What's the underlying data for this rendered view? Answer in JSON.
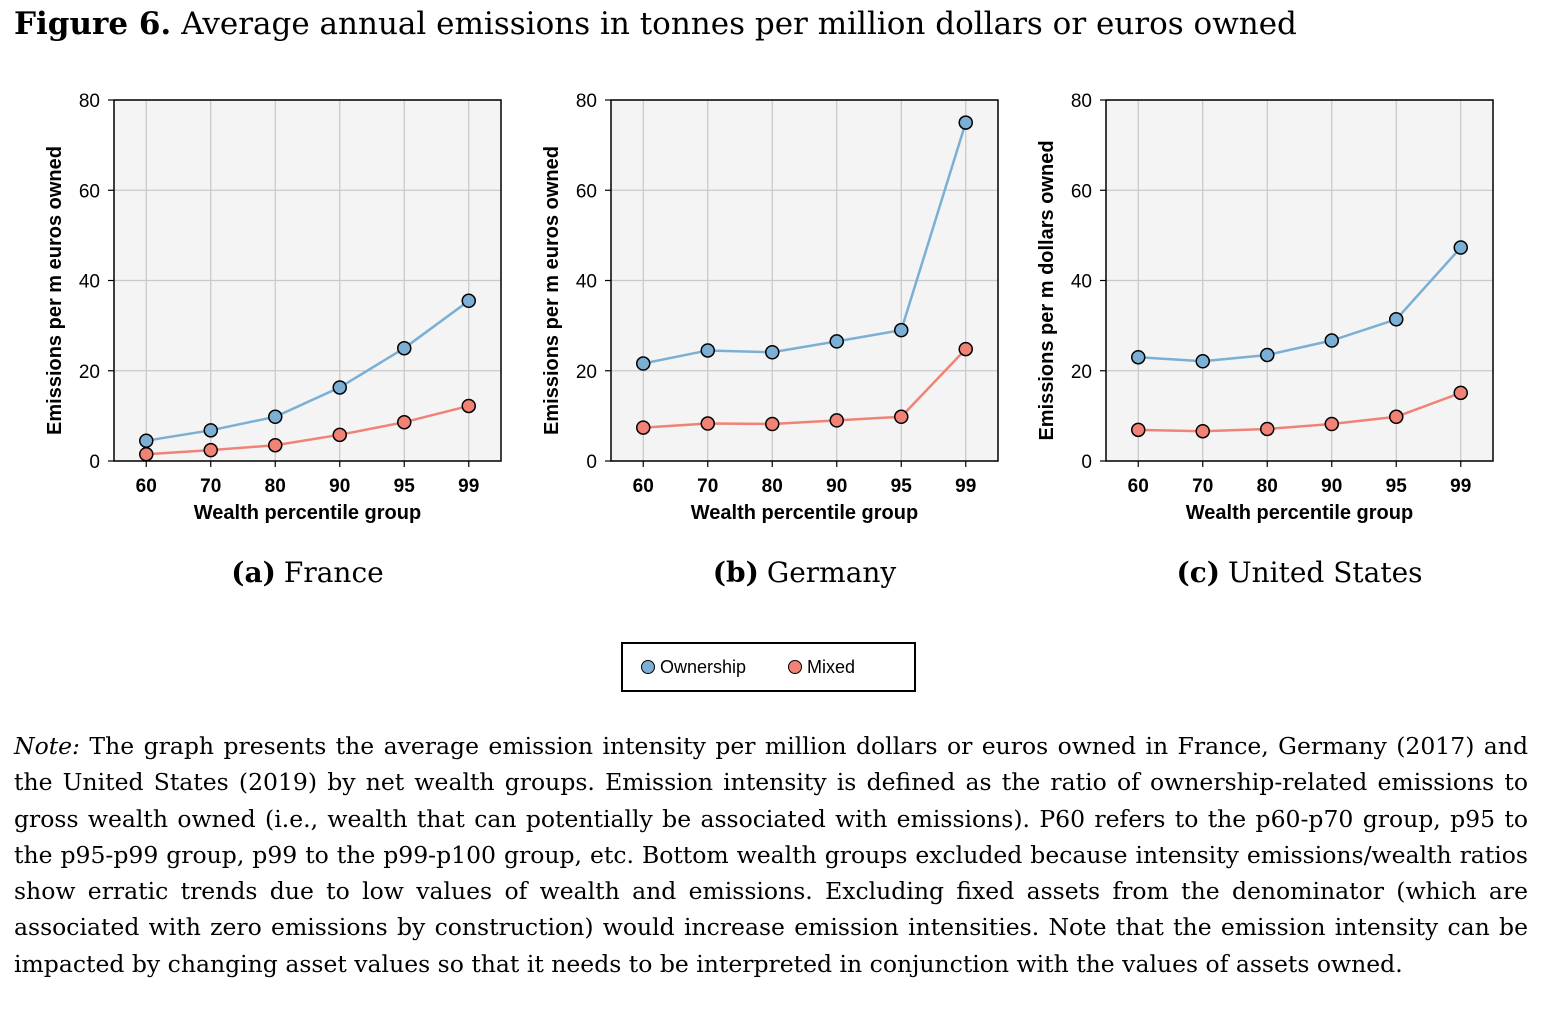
{
  "figure": {
    "label": "Figure 6.",
    "title": "Average annual emissions in tonnes per million dollars or euros owned"
  },
  "legend": {
    "items": [
      {
        "label": "Ownership",
        "color": "#7bafd4"
      },
      {
        "label": "Mixed",
        "color": "#f08376"
      }
    ]
  },
  "chart_data": [
    {
      "type": "line",
      "panel_label": "(a)",
      "caption": "France",
      "xlabel": "Wealth percentile group",
      "ylabel": "Emissions per m euros owned",
      "categories": [
        "60",
        "70",
        "80",
        "90",
        "95",
        "99"
      ],
      "ylim": [
        0,
        80
      ],
      "yticks": [
        "0",
        "20",
        "40",
        "60",
        "80"
      ],
      "grid": true,
      "series": [
        {
          "name": "Ownership",
          "color": "#7bafd4",
          "values": [
            4.5,
            6.8,
            9.8,
            16.3,
            25.0,
            35.5
          ]
        },
        {
          "name": "Mixed",
          "color": "#f08376",
          "values": [
            1.5,
            2.4,
            3.5,
            5.8,
            8.6,
            12.2
          ]
        }
      ]
    },
    {
      "type": "line",
      "panel_label": "(b)",
      "caption": "Germany",
      "xlabel": "Wealth percentile group",
      "ylabel": "Emissions per m euros owned",
      "categories": [
        "60",
        "70",
        "80",
        "90",
        "95",
        "99"
      ],
      "ylim": [
        0,
        80
      ],
      "yticks": [
        "0",
        "20",
        "40",
        "60",
        "80"
      ],
      "grid": true,
      "series": [
        {
          "name": "Ownership",
          "color": "#7bafd4",
          "values": [
            21.6,
            24.5,
            24.1,
            26.5,
            29.0,
            75.0
          ]
        },
        {
          "name": "Mixed",
          "color": "#f08376",
          "values": [
            7.4,
            8.3,
            8.2,
            9.0,
            9.8,
            24.8
          ]
        }
      ]
    },
    {
      "type": "line",
      "panel_label": "(c)",
      "caption": "United States",
      "xlabel": "Wealth percentile group",
      "ylabel": "Emissions per m dollars owned",
      "categories": [
        "60",
        "70",
        "80",
        "90",
        "95",
        "99"
      ],
      "ylim": [
        0,
        80
      ],
      "yticks": [
        "0",
        "20",
        "40",
        "60",
        "80"
      ],
      "grid": true,
      "series": [
        {
          "name": "Ownership",
          "color": "#7bafd4",
          "values": [
            23.0,
            22.1,
            23.5,
            26.7,
            31.4,
            47.3
          ]
        },
        {
          "name": "Mixed",
          "color": "#f08376",
          "values": [
            6.9,
            6.6,
            7.1,
            8.2,
            9.8,
            15.1
          ]
        }
      ]
    }
  ],
  "note": {
    "label": "Note:",
    "text": "The graph presents the average emission intensity per million dollars or euros owned in France, Germany (2017) and the United States (2019) by net wealth groups. Emission intensity is defined as the ratio of ownership-related emissions to gross wealth owned (i.e., wealth that can potentially be associated with emissions). P60 refers to the p60-p70 group, p95 to the p95-p99 group, p99 to the p99-p100 group, etc. Bottom wealth groups excluded because intensity emissions/wealth ratios show erratic trends due to low values of wealth and emissions. Excluding fixed assets from the denominator (which are associated with zero emissions by construction) would increase emission intensities. Note that the emission intensity can be impacted by changing asset values so that it needs to be interpreted in conjunction with the values of assets owned."
  }
}
